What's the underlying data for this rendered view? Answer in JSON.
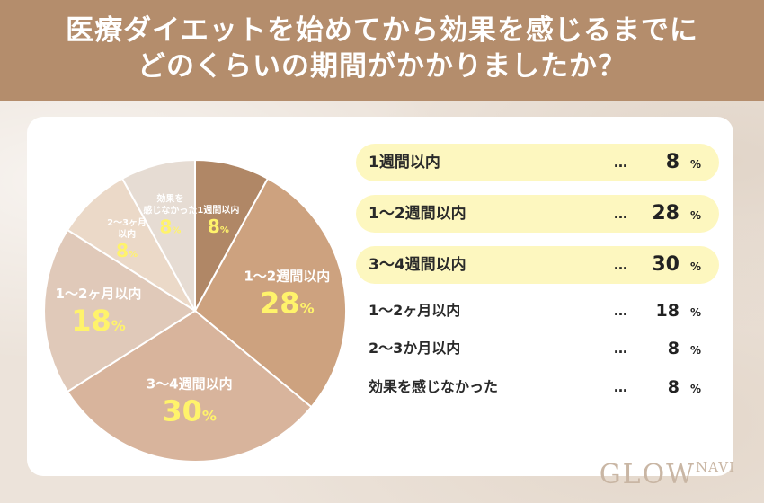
{
  "header": {
    "line1": "医療ダイエットを始めてから効果を感じるまでに",
    "line2": "どのくらいの期間がかかりましたか？"
  },
  "logo": {
    "main": "GLOW",
    "small": "NAVI"
  },
  "chart_data": {
    "type": "pie",
    "unit": "%",
    "slices": [
      {
        "label": "1週間以内",
        "value": 8,
        "color": "#b08766",
        "text_color": "#ffffff",
        "value_color": "#fff36b",
        "label_lines": [
          "1週間以内"
        ]
      },
      {
        "label": "1〜2週間以内",
        "value": 28,
        "color": "#cda27f",
        "text_color": "#ffffff",
        "value_color": "#fff36b",
        "label_lines": [
          "1〜2週間以内"
        ]
      },
      {
        "label": "3〜4週間以内",
        "value": 30,
        "color": "#d8b49c",
        "text_color": "#ffffff",
        "value_color": "#fff36b",
        "label_lines": [
          "3〜4週間以内"
        ]
      },
      {
        "label": "1〜2ヶ月以内",
        "value": 18,
        "color": "#e0c9b9",
        "text_color": "#ffffff",
        "value_color": "#fff36b",
        "label_lines": [
          "1〜2ヶ月以内"
        ]
      },
      {
        "label": "2〜3か月以内",
        "value": 8,
        "color": "#ebd9c8",
        "text_color": "#ffffff",
        "value_color": "#fff36b",
        "label_lines": [
          "2〜3ヶ月",
          "以内"
        ]
      },
      {
        "label": "効果を感じなかった",
        "value": 8,
        "color": "#e6dcd3",
        "text_color": "#ffffff",
        "value_color": "#fff36b",
        "label_lines": [
          "効果を",
          "感じなかった"
        ]
      }
    ]
  },
  "table": {
    "dots": "…",
    "pct_symbol": "%",
    "rows": [
      {
        "label": "1週間以内",
        "value": "8",
        "highlight": true
      },
      {
        "label": "1〜2週間以内",
        "value": "28",
        "highlight": true
      },
      {
        "label": "3〜4週間以内",
        "value": "30",
        "highlight": true
      },
      {
        "label": "1〜2ヶ月以内",
        "value": "18",
        "highlight": false
      },
      {
        "label": "2〜3か月以内",
        "value": "8",
        "highlight": false
      },
      {
        "label": "効果を感じなかった",
        "value": "8",
        "highlight": false
      }
    ]
  }
}
